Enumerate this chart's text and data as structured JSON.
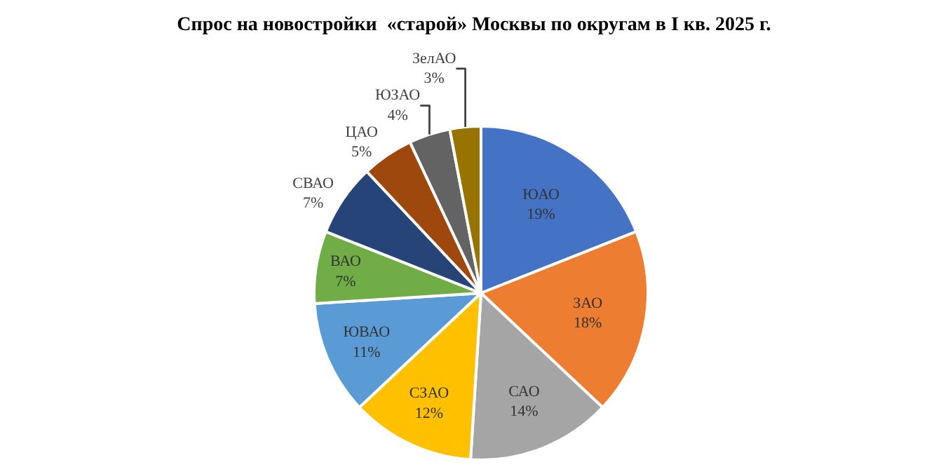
{
  "chart_data": {
    "type": "pie",
    "title": "Спрос на новостройки  «старой» Москвы по округам в I кв. 2025 г.",
    "categories": [
      "ЮАО",
      "ЗАО",
      "САО",
      "СЗАО",
      "ЮВАО",
      "ВАО",
      "СВАО",
      "ЦАО",
      "ЮЗАО",
      "ЗелАО"
    ],
    "values": [
      19,
      18,
      14,
      12,
      11,
      7,
      7,
      5,
      4,
      3
    ],
    "value_labels": [
      "19%",
      "18%",
      "14%",
      "12%",
      "11%",
      "7%",
      "7%",
      "5%",
      "4%",
      "3%"
    ],
    "colors": [
      "#4472c4",
      "#ed7d31",
      "#a5a5a5",
      "#ffc000",
      "#5b9bd5",
      "#70ad47",
      "#264478",
      "#9e480e",
      "#636363",
      "#997300"
    ]
  }
}
